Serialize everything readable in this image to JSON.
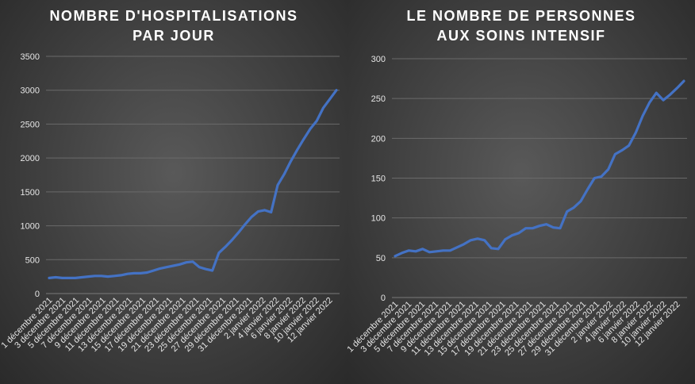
{
  "chart_data": [
    {
      "type": "line",
      "title": "NOMBRE D'HOSPITALISATIONS PAR JOUR",
      "title_lines": [
        "NOMBRE D'HOSPITALISATIONS",
        "PAR JOUR"
      ],
      "xlabel": "",
      "ylabel": "",
      "ylim": [
        0,
        3500
      ],
      "yticks": [
        0,
        500,
        1000,
        1500,
        2000,
        2500,
        3000,
        3500
      ],
      "grid": true,
      "legend": "none",
      "x_tick_labels": [
        "1 décembre 2021",
        "3 décembre 2021",
        "5 décembre 2021",
        "7 décembre 2021",
        "9 décembre 2021",
        "11 décembre 2021",
        "13 décembre 2021",
        "15 décembre 2021",
        "17 décembre 2021",
        "19 décembre 2021",
        "21 décembre 2021",
        "23 décembre 2021",
        "25 décembre 2021",
        "27 décembre 2021",
        "29 décembre 2021",
        "31 décembre 2021",
        "2 janvier 2022",
        "4 janvier 2022",
        "6 janvier 2022",
        "8 janvier 2022",
        "10 janvier 2022",
        "12 janvier 2022"
      ],
      "series": [
        {
          "color": "#4472c4",
          "values": [
            230,
            240,
            230,
            230,
            230,
            240,
            250,
            260,
            260,
            250,
            260,
            270,
            290,
            300,
            300,
            310,
            340,
            370,
            390,
            410,
            430,
            460,
            470,
            390,
            360,
            340,
            600,
            690,
            790,
            900,
            1020,
            1130,
            1210,
            1230,
            1200,
            1600,
            1760,
            1950,
            2120,
            2280,
            2430,
            2550,
            2740,
            2870,
            3000
          ]
        }
      ]
    },
    {
      "type": "line",
      "title": "LE NOMBRE DE PERSONNES AUX SOINS INTENSIF",
      "title_lines": [
        "LE NOMBRE DE PERSONNES",
        "AUX SOINS INTENSIF"
      ],
      "xlabel": "",
      "ylabel": "",
      "ylim": [
        0,
        300
      ],
      "yticks": [
        0,
        50,
        100,
        150,
        200,
        250,
        300
      ],
      "grid": true,
      "legend": "none",
      "x_tick_labels": [
        "1 décembre 2021",
        "3 décembre 2021",
        "5 décembre 2021",
        "7 décembre 2021",
        "9 décembre 2021",
        "11 décembre 2021",
        "13 décembre 2021",
        "15 décembre 2021",
        "17 décembre 2021",
        "19 décembre 2021",
        "21 décembre 2021",
        "23 décembre 2021",
        "25 décembre 2021",
        "27 décembre 2021",
        "29 décembre 2021",
        "31 décembre 2021",
        "2 janvier 2022",
        "4 janvier 2022",
        "6 janvier 2022",
        "8 janvier 2022",
        "10 janvier 2022",
        "12 janvier 2022"
      ],
      "series": [
        {
          "color": "#4472c4",
          "values": [
            52,
            56,
            59,
            58,
            61,
            57,
            58,
            59,
            59,
            63,
            67,
            72,
            74,
            72,
            62,
            61,
            73,
            78,
            81,
            87,
            87,
            90,
            92,
            88,
            87,
            108,
            113,
            121,
            136,
            150,
            152,
            161,
            180,
            185,
            191,
            207,
            228,
            245,
            257,
            248,
            255,
            263,
            272
          ]
        }
      ]
    }
  ]
}
